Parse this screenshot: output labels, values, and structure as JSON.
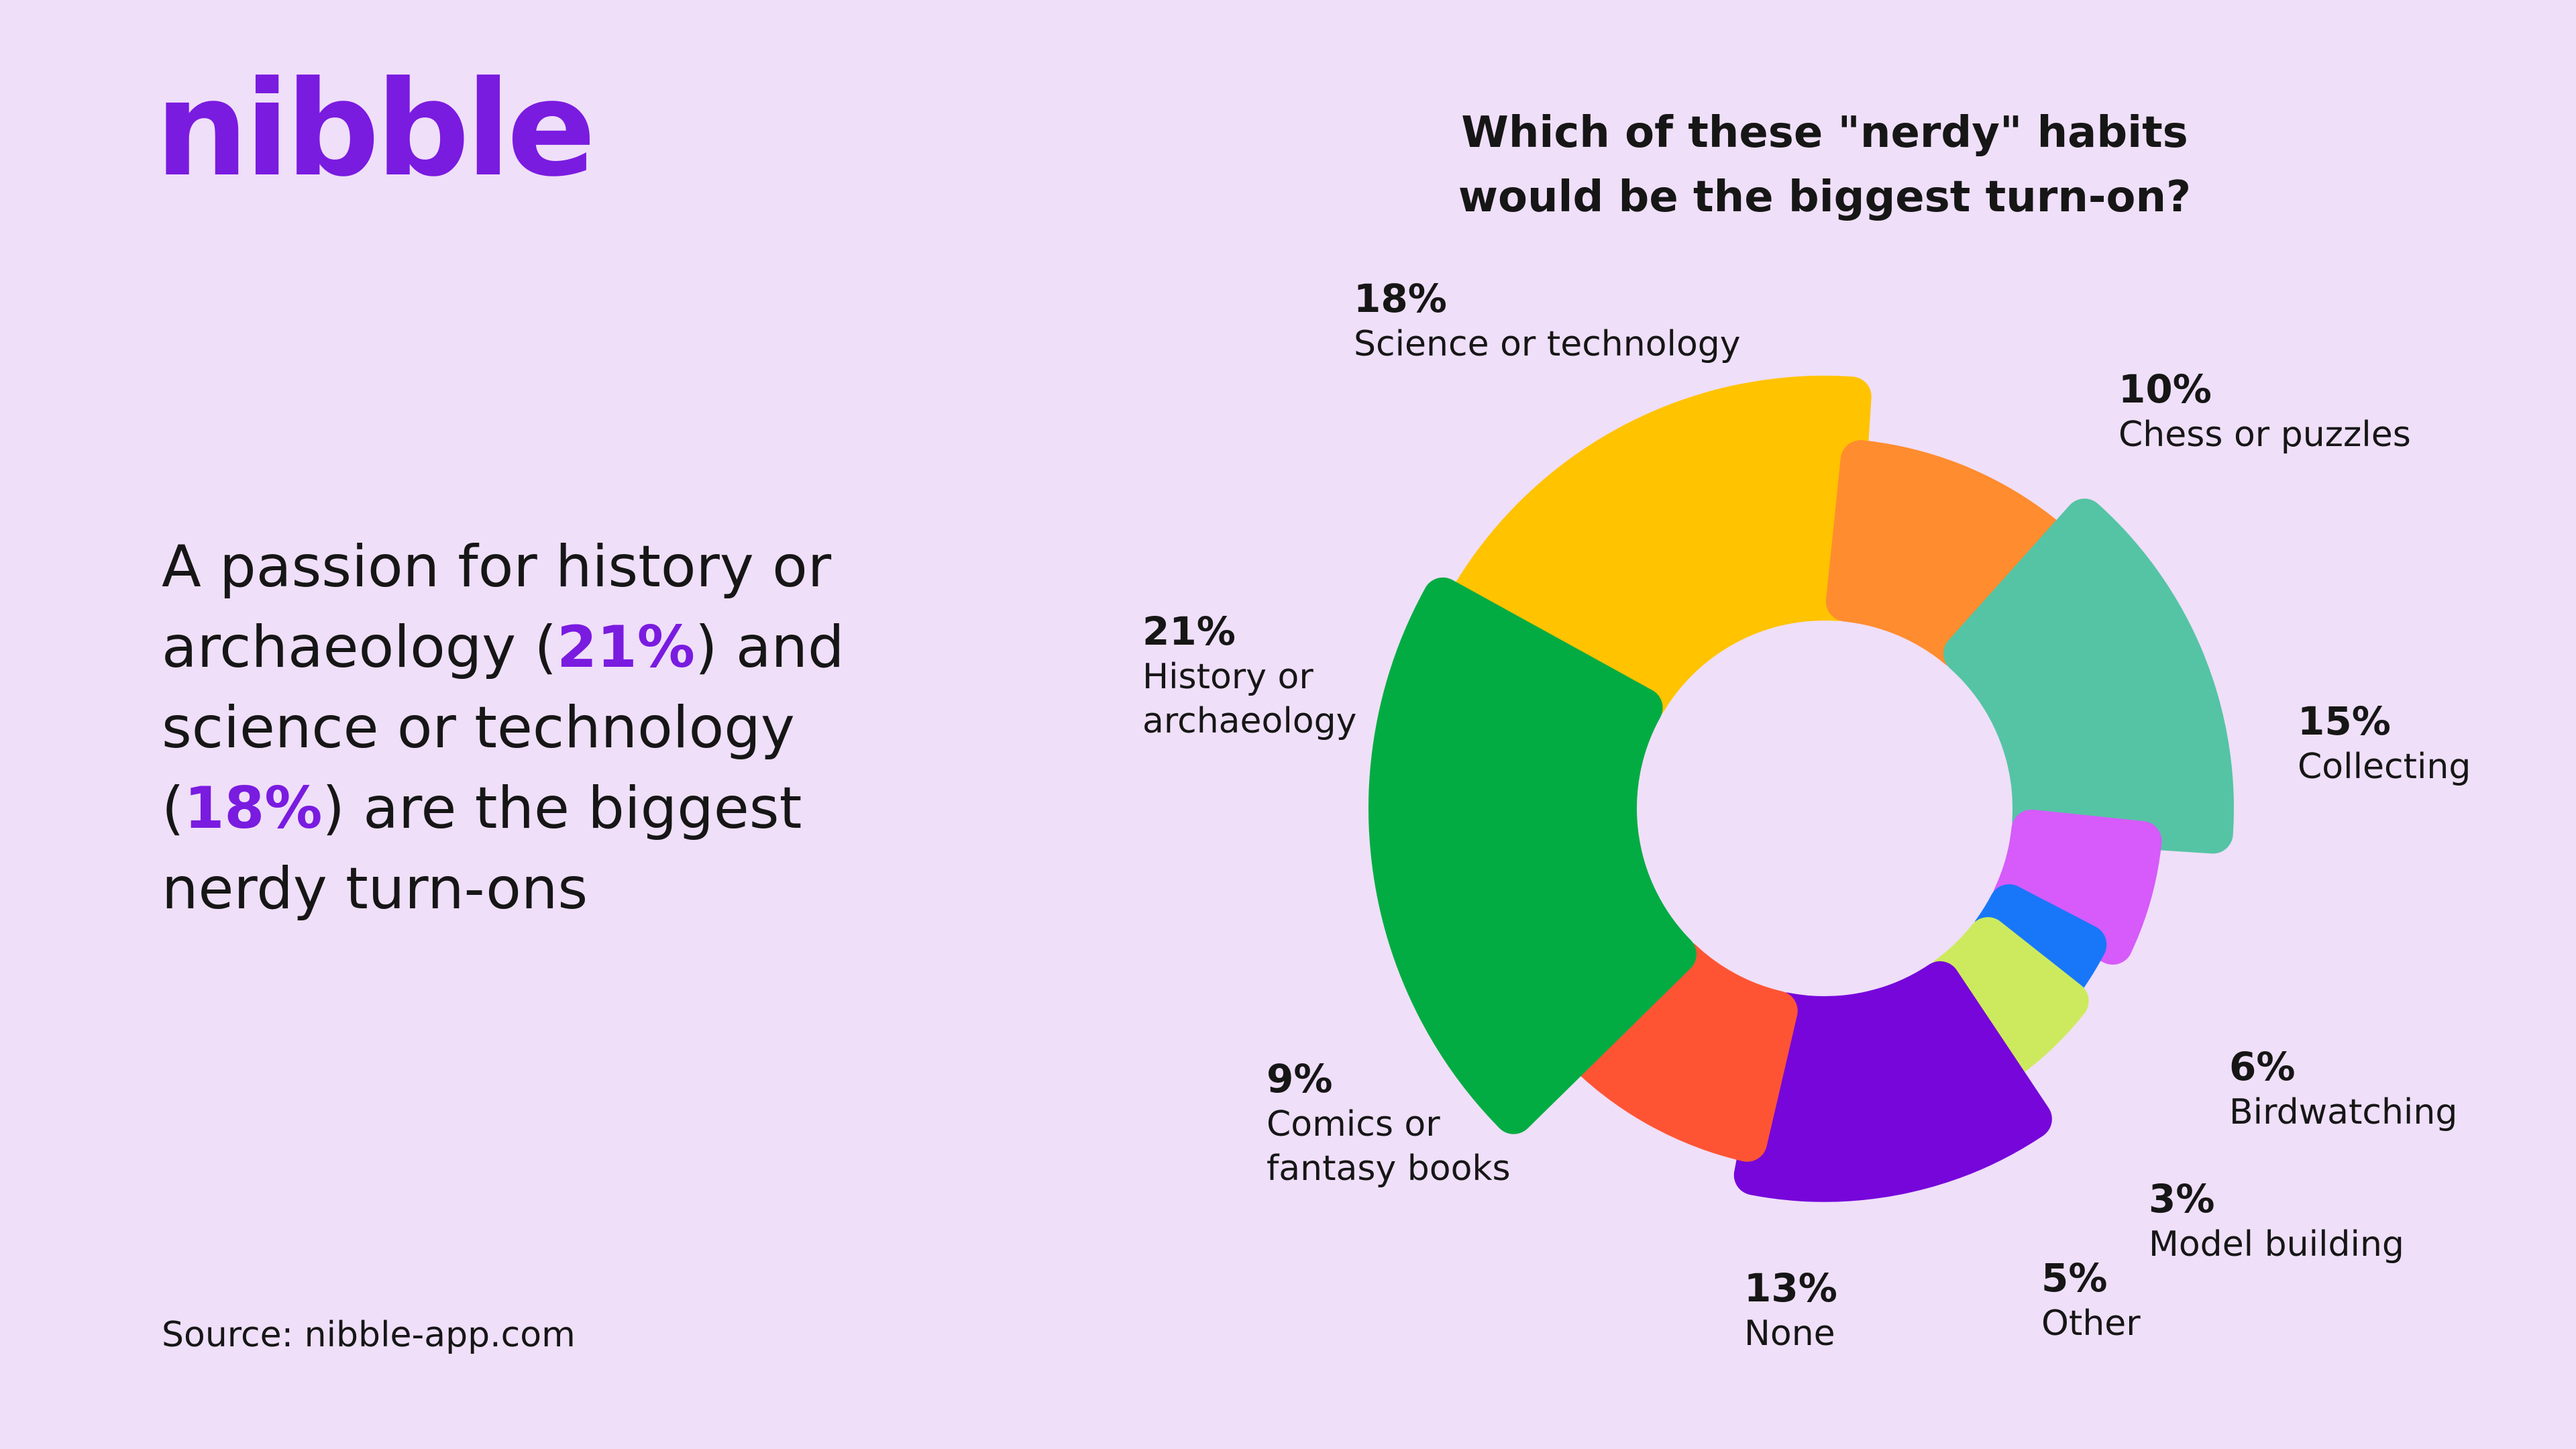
{
  "brand": {
    "logo_text": "nibble",
    "accent_color": "#7A1BE0"
  },
  "headline": {
    "part1": "A passion for history or archaeology (",
    "highlight1": "21%",
    "part2": ") and science or technology (",
    "highlight2": "18%",
    "part3": ") are the biggest nerdy turn-ons"
  },
  "source": "Source: nibble-app.com",
  "chart_data": {
    "type": "pie",
    "title_lines": [
      "Which of these \"nerdy\" habits",
      "would be the biggest turn-on?"
    ],
    "slices": [
      {
        "label": "Science or technology",
        "value": 18,
        "value_label": "18%",
        "color": "#FFC300"
      },
      {
        "label": "Chess or puzzles",
        "value": 10,
        "value_label": "10%",
        "color": "#FF8C2E"
      },
      {
        "label": "Collecting",
        "value": 15,
        "value_label": "15%",
        "color": "#55C4A4"
      },
      {
        "label": "Birdwatching",
        "value": 6,
        "value_label": "6%",
        "color": "#D65BFA"
      },
      {
        "label": "Model building",
        "value": 3,
        "value_label": "3%",
        "color": "#1877F9"
      },
      {
        "label": "Other",
        "value": 5,
        "value_label": "5%",
        "color": "#CDEA5E"
      },
      {
        "label": "None",
        "value": 13,
        "value_label": "13%",
        "color": "#7606DA"
      },
      {
        "label": "Comics or\nfantasy books",
        "value": 9,
        "value_label": "9%",
        "color": "#FF5434"
      },
      {
        "label": "History or\narchaeology",
        "value": 21,
        "value_label": "21%",
        "color": "#03AC42"
      }
    ]
  }
}
